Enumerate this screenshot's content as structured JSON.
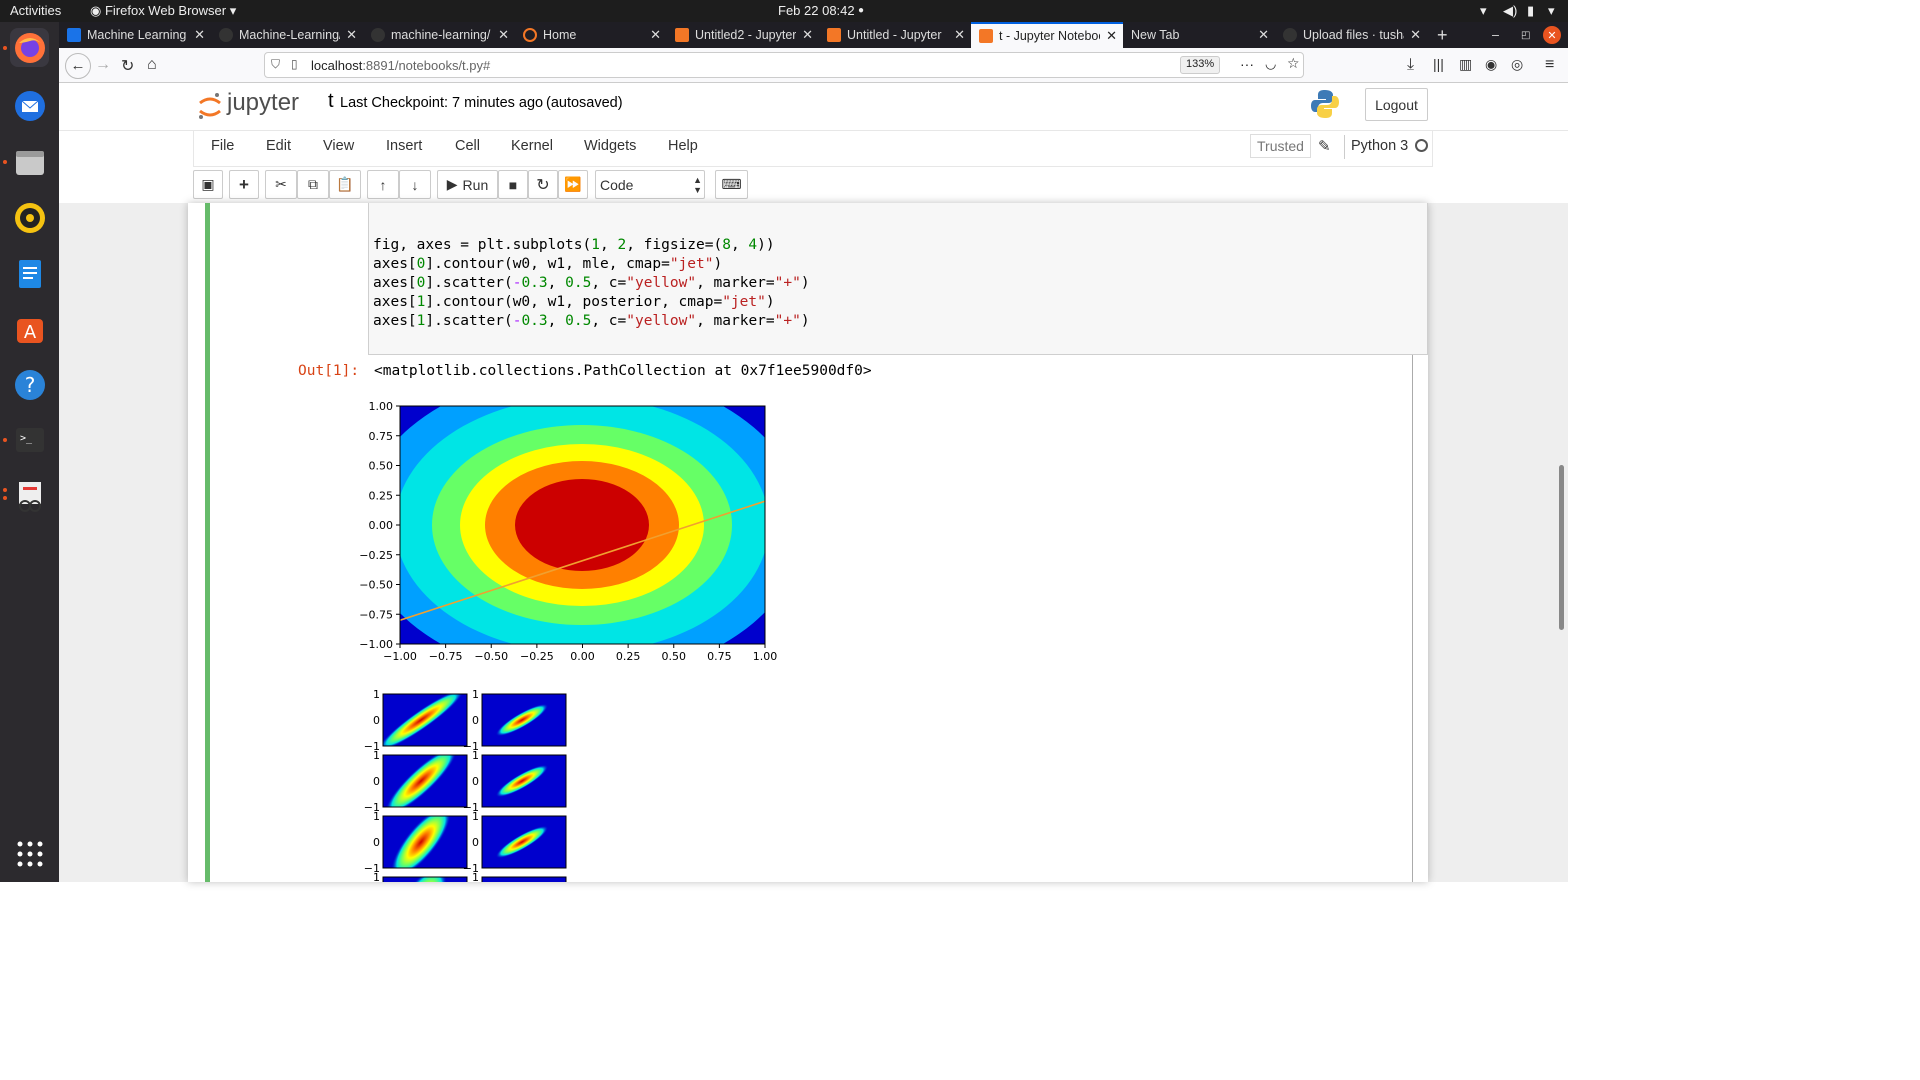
{
  "system": {
    "activities": "Activities",
    "app_name": "Firefox Web Browser",
    "datetime": "Feb 22  08:42"
  },
  "tabs": [
    {
      "label": "Machine Learning",
      "icon_color": "#1a73e8",
      "active": false
    },
    {
      "label": "Machine-Learning/",
      "icon_color": "#444",
      "active": false
    },
    {
      "label": "machine-learning/",
      "icon_color": "#444",
      "active": false
    },
    {
      "label": "Home",
      "icon_color": "#f37726",
      "active": false
    },
    {
      "label": "Untitled2 - Jupyter",
      "icon_color": "#f37726",
      "active": false
    },
    {
      "label": "Untitled - Jupyter",
      "icon_color": "#f37726",
      "active": false
    },
    {
      "label": "t - Jupyter Notebook",
      "icon_color": "#f37726",
      "active": true
    },
    {
      "label": "New Tab",
      "icon_color": "",
      "active": false
    },
    {
      "label": "Upload files · tusha",
      "icon_color": "#444",
      "active": false
    }
  ],
  "browser": {
    "url_host": "localhost",
    "url_rest": ":8891/notebooks/t.py#",
    "zoom": "133%"
  },
  "jupyter": {
    "logo_text": "jupyter",
    "notebook_name": "t",
    "checkpoint": "Last Checkpoint: 7 minutes ago",
    "autosave": "(autosaved)",
    "logout": "Logout",
    "menu": [
      "File",
      "Edit",
      "View",
      "Insert",
      "Cell",
      "Kernel",
      "Widgets",
      "Help"
    ],
    "trusted": "Trusted",
    "kernel": "Python 3",
    "run_label": "Run",
    "cell_type": "Code"
  },
  "cell": {
    "code_lines": [
      "fig, axes = plt.subplots(1, 2, figsize=(8, 4))",
      "axes[0].contour(w0, w1, mle, cmap=\"jet\")",
      "axes[0].scatter(-0.3, 0.5, c=\"yellow\", marker=\"+\")",
      "axes[1].contour(w0, w1, posterior, cmap=\"jet\")",
      "axes[1].scatter(-0.3, 0.5, c=\"yellow\", marker=\"+\")"
    ],
    "out_prompt": "Out[1]:",
    "out_text": "<matplotlib.collections.PathCollection at 0x7f1ee5900df0>"
  },
  "main_plot": {
    "xticks": [
      "−1.00",
      "−0.75",
      "−0.50",
      "−0.25",
      "0.00",
      "0.25",
      "0.50",
      "0.75",
      "1.00"
    ],
    "yticks": [
      "1.00",
      "0.75",
      "0.50",
      "0.25",
      "0.00",
      "−0.25",
      "−0.50",
      "−0.75",
      "−1.00"
    ],
    "xlim": [
      -1,
      1
    ],
    "ylim": [
      -1,
      1
    ],
    "filled_levels_colors": [
      "#0000cd",
      "#00a0ff",
      "#00e5e5",
      "#66ff66",
      "#ffff00",
      "#ff8000",
      "#cc0000"
    ],
    "line": {
      "x": [
        -1.0,
        1.0
      ],
      "y": [
        -0.8,
        0.2
      ],
      "color": "#f0a030"
    }
  },
  "small_plots": {
    "ytick_top": "1",
    "ytick_mid": "0",
    "ytick_bottom": "−1"
  }
}
